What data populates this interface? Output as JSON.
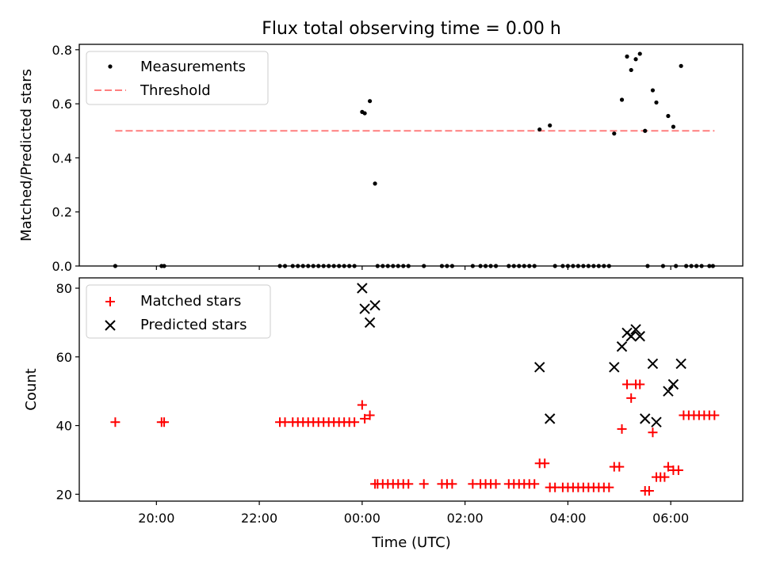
{
  "figure": {
    "title": "Flux total observing time = 0.00 h"
  },
  "chart_data": [
    {
      "type": "scatter",
      "title": "Flux total observing time = 0.00 h",
      "xlabel": "",
      "ylabel": "Matched/Predicted stars",
      "x_unit": "hours_relative_to_00:00_UTC",
      "xlim": [
        -5.5,
        7.4
      ],
      "ylim": [
        0,
        0.82
      ],
      "yticks": [
        0.0,
        0.2,
        0.4,
        0.6,
        0.8
      ],
      "ytick_labels": [
        "0.0",
        "0.2",
        "0.4",
        "0.6",
        "0.8"
      ],
      "legend_position": "upper-left",
      "colors": {
        "measurements": "#000000",
        "threshold": "#ff7f7f"
      },
      "series": [
        {
          "name": "Measurements",
          "points": [
            [
              -4.8,
              0.0
            ],
            [
              -3.9,
              0.0
            ],
            [
              -3.85,
              0.0
            ],
            [
              -1.6,
              0.0
            ],
            [
              -1.5,
              0.0
            ],
            [
              -1.35,
              0.0
            ],
            [
              -1.25,
              0.0
            ],
            [
              -1.15,
              0.0
            ],
            [
              -1.05,
              0.0
            ],
            [
              -0.95,
              0.0
            ],
            [
              -0.85,
              0.0
            ],
            [
              -0.75,
              0.0
            ],
            [
              -0.65,
              0.0
            ],
            [
              -0.55,
              0.0
            ],
            [
              -0.45,
              0.0
            ],
            [
              -0.35,
              0.0
            ],
            [
              -0.25,
              0.0
            ],
            [
              -0.15,
              0.0
            ],
            [
              0.0,
              0.57
            ],
            [
              0.05,
              0.565
            ],
            [
              0.15,
              0.61
            ],
            [
              0.25,
              0.305
            ],
            [
              0.3,
              0.0
            ],
            [
              0.4,
              0.0
            ],
            [
              0.5,
              0.0
            ],
            [
              0.6,
              0.0
            ],
            [
              0.7,
              0.0
            ],
            [
              0.8,
              0.0
            ],
            [
              0.9,
              0.0
            ],
            [
              1.2,
              0.0
            ],
            [
              1.55,
              0.0
            ],
            [
              1.65,
              0.0
            ],
            [
              1.75,
              0.0
            ],
            [
              2.15,
              0.0
            ],
            [
              2.3,
              0.0
            ],
            [
              2.4,
              0.0
            ],
            [
              2.5,
              0.0
            ],
            [
              2.6,
              0.0
            ],
            [
              2.85,
              0.0
            ],
            [
              2.95,
              0.0
            ],
            [
              3.05,
              0.0
            ],
            [
              3.15,
              0.0
            ],
            [
              3.25,
              0.0
            ],
            [
              3.35,
              0.0
            ],
            [
              3.45,
              0.505
            ],
            [
              3.65,
              0.52
            ],
            [
              3.75,
              0.0
            ],
            [
              3.9,
              0.0
            ],
            [
              4.0,
              0.0
            ],
            [
              4.1,
              0.0
            ],
            [
              4.2,
              0.0
            ],
            [
              4.3,
              0.0
            ],
            [
              4.4,
              0.0
            ],
            [
              4.5,
              0.0
            ],
            [
              4.6,
              0.0
            ],
            [
              4.7,
              0.0
            ],
            [
              4.8,
              0.0
            ],
            [
              4.9,
              0.49
            ],
            [
              5.05,
              0.615
            ],
            [
              5.15,
              0.775
            ],
            [
              5.23,
              0.725
            ],
            [
              5.32,
              0.765
            ],
            [
              5.4,
              0.785
            ],
            [
              5.5,
              0.5
            ],
            [
              5.55,
              0.0
            ],
            [
              5.65,
              0.65
            ],
            [
              5.72,
              0.605
            ],
            [
              5.85,
              0.0
            ],
            [
              5.95,
              0.555
            ],
            [
              6.05,
              0.515
            ],
            [
              6.1,
              0.0
            ],
            [
              6.2,
              0.74
            ],
            [
              6.3,
              0.0
            ],
            [
              6.4,
              0.0
            ],
            [
              6.5,
              0.0
            ],
            [
              6.6,
              0.0
            ],
            [
              6.75,
              0.0
            ],
            [
              6.82,
              0.0
            ]
          ]
        },
        {
          "name": "Threshold",
          "style": "dashed",
          "points": [
            [
              -4.8,
              0.5
            ],
            [
              6.85,
              0.5
            ]
          ]
        }
      ]
    },
    {
      "type": "scatter",
      "title": "",
      "xlabel": "Time (UTC)",
      "ylabel": "Count",
      "x_unit": "hours_relative_to_00:00_UTC",
      "xlim": [
        -5.5,
        7.4
      ],
      "ylim": [
        18,
        83
      ],
      "xticks": [
        -4,
        -2,
        0,
        2,
        4,
        6
      ],
      "xtick_labels": [
        "20:00",
        "22:00",
        "00:00",
        "02:00",
        "04:00",
        "06:00"
      ],
      "yticks": [
        20,
        40,
        60,
        80
      ],
      "ytick_labels": [
        "20",
        "40",
        "60",
        "80"
      ],
      "legend_position": "upper-left",
      "colors": {
        "matched": "#ff0000",
        "predicted": "#000000"
      },
      "series": [
        {
          "name": "Matched stars",
          "marker": "plus",
          "points": [
            [
              -4.8,
              41
            ],
            [
              -3.9,
              41
            ],
            [
              -3.85,
              41
            ],
            [
              -1.6,
              41
            ],
            [
              -1.5,
              41
            ],
            [
              -1.35,
              41
            ],
            [
              -1.25,
              41
            ],
            [
              -1.15,
              41
            ],
            [
              -1.05,
              41
            ],
            [
              -0.95,
              41
            ],
            [
              -0.85,
              41
            ],
            [
              -0.75,
              41
            ],
            [
              -0.65,
              41
            ],
            [
              -0.55,
              41
            ],
            [
              -0.45,
              41
            ],
            [
              -0.35,
              41
            ],
            [
              -0.25,
              41
            ],
            [
              -0.15,
              41
            ],
            [
              0.0,
              46
            ],
            [
              0.05,
              42
            ],
            [
              0.15,
              43
            ],
            [
              0.25,
              23
            ],
            [
              0.3,
              23
            ],
            [
              0.4,
              23
            ],
            [
              0.5,
              23
            ],
            [
              0.6,
              23
            ],
            [
              0.7,
              23
            ],
            [
              0.8,
              23
            ],
            [
              0.9,
              23
            ],
            [
              1.2,
              23
            ],
            [
              1.55,
              23
            ],
            [
              1.65,
              23
            ],
            [
              1.75,
              23
            ],
            [
              2.15,
              23
            ],
            [
              2.3,
              23
            ],
            [
              2.4,
              23
            ],
            [
              2.5,
              23
            ],
            [
              2.6,
              23
            ],
            [
              2.85,
              23
            ],
            [
              2.95,
              23
            ],
            [
              3.05,
              23
            ],
            [
              3.15,
              23
            ],
            [
              3.25,
              23
            ],
            [
              3.35,
              23
            ],
            [
              3.45,
              29
            ],
            [
              3.55,
              29
            ],
            [
              3.65,
              22
            ],
            [
              3.75,
              22
            ],
            [
              3.9,
              22
            ],
            [
              4.0,
              22
            ],
            [
              4.1,
              22
            ],
            [
              4.2,
              22
            ],
            [
              4.3,
              22
            ],
            [
              4.4,
              22
            ],
            [
              4.5,
              22
            ],
            [
              4.6,
              22
            ],
            [
              4.7,
              22
            ],
            [
              4.8,
              22
            ],
            [
              4.9,
              28
            ],
            [
              5.0,
              28
            ],
            [
              5.05,
              39
            ],
            [
              5.15,
              52
            ],
            [
              5.23,
              48
            ],
            [
              5.32,
              52
            ],
            [
              5.4,
              52
            ],
            [
              5.5,
              21
            ],
            [
              5.58,
              21
            ],
            [
              5.65,
              38
            ],
            [
              5.72,
              25
            ],
            [
              5.8,
              25
            ],
            [
              5.88,
              25
            ],
            [
              5.95,
              28
            ],
            [
              6.05,
              27
            ],
            [
              6.15,
              27
            ],
            [
              6.25,
              43
            ],
            [
              6.35,
              43
            ],
            [
              6.45,
              43
            ],
            [
              6.55,
              43
            ],
            [
              6.65,
              43
            ],
            [
              6.75,
              43
            ],
            [
              6.85,
              43
            ]
          ]
        },
        {
          "name": "Predicted stars",
          "marker": "x",
          "points": [
            [
              0.0,
              80
            ],
            [
              0.05,
              74
            ],
            [
              0.15,
              70
            ],
            [
              0.25,
              75
            ],
            [
              3.45,
              57
            ],
            [
              3.65,
              42
            ],
            [
              4.9,
              57
            ],
            [
              5.05,
              63
            ],
            [
              5.15,
              67
            ],
            [
              5.23,
              66
            ],
            [
              5.32,
              68
            ],
            [
              5.4,
              66
            ],
            [
              5.5,
              42
            ],
            [
              5.65,
              58
            ],
            [
              5.72,
              41
            ],
            [
              5.95,
              50
            ],
            [
              6.05,
              52
            ],
            [
              6.2,
              58
            ]
          ]
        }
      ]
    }
  ]
}
